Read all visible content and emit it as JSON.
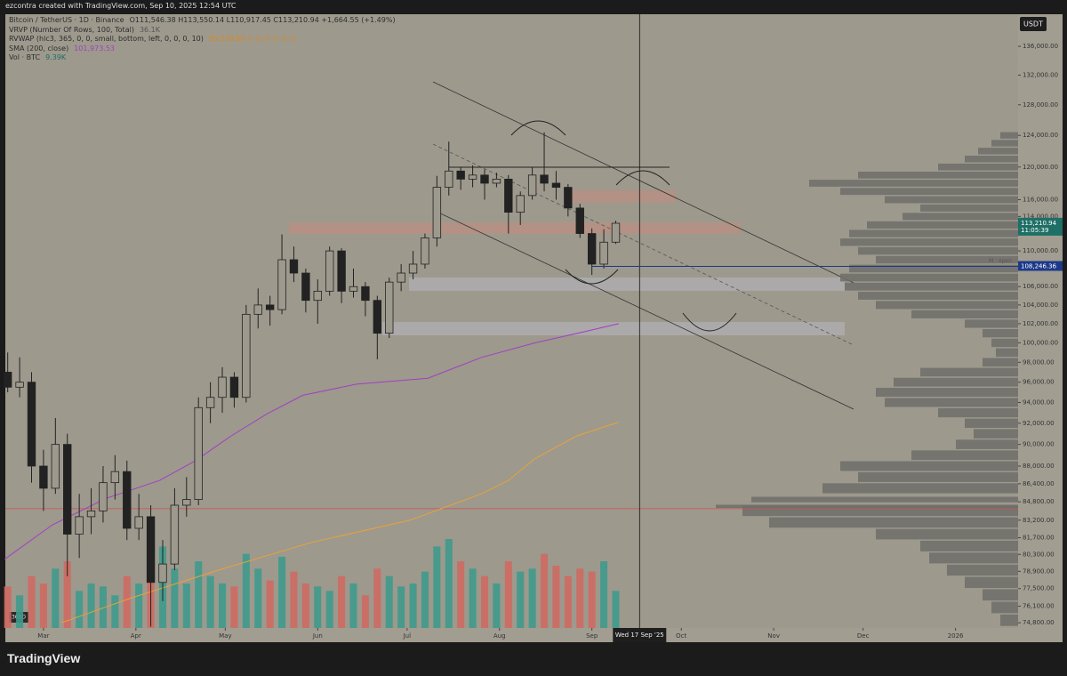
{
  "credit": "ezcontra created with TradingView.com, Sep 10, 2025 12:54 UTC",
  "footer_logo": "TradingView",
  "chart_data": {
    "type": "candlestick",
    "legend_lines": [
      {
        "name": "Bitcoin / TetherUS · 1D · Binance",
        "value": "O111,546.38 H113,550.14 L110,917.45 C113,210.94 +1,664.55 (+1.49%)"
      },
      {
        "name": "VRVP (Number Of Rows, 100, Total)",
        "value": "36.1K"
      },
      {
        "name": "RVWAP (hlc3, 365, 0, 0, small, bottom, left, 0, 0, 0, 10)",
        "value": "85,238.86 ∅ ∅ ∅ ∅ ∅ ∅"
      },
      {
        "name": "SMA (200, close)",
        "value": "101,973.53"
      },
      {
        "name": "Vol · BTC",
        "value": "9.39K"
      }
    ],
    "currency": "USDT",
    "range_label": "365D",
    "log_scale": true,
    "xlim": [
      -12.8,
      327
    ],
    "ylim": [
      74400,
      140600
    ],
    "xticks": [
      {
        "value": 0,
        "label": "Mar"
      },
      {
        "value": 31,
        "label": "Apr"
      },
      {
        "value": 61,
        "label": "May"
      },
      {
        "value": 92,
        "label": "Jun"
      },
      {
        "value": 122,
        "label": "Jul"
      },
      {
        "value": 153,
        "label": "Aug"
      },
      {
        "value": 184,
        "label": "Sep"
      },
      {
        "value": 214,
        "label": "Oct"
      },
      {
        "value": 245,
        "label": "Nov"
      },
      {
        "value": 275,
        "label": "Dec"
      },
      {
        "value": 306,
        "label": "2026"
      }
    ],
    "yticks": [
      {
        "value": 136000,
        "label": "136,000.00"
      },
      {
        "value": 132000,
        "label": "132,000.00"
      },
      {
        "value": 128000,
        "label": "128,000.00"
      },
      {
        "value": 124000,
        "label": "124,000.00"
      },
      {
        "value": 120000,
        "label": "120,000.00"
      },
      {
        "value": 116000,
        "label": "116,000.00"
      },
      {
        "value": 114000,
        "label": "114,000.00"
      },
      {
        "value": 110000,
        "label": "110,000.00"
      },
      {
        "value": 106000,
        "label": "106,000.00"
      },
      {
        "value": 104000,
        "label": "104,000.00"
      },
      {
        "value": 102000,
        "label": "102,000.00"
      },
      {
        "value": 100000,
        "label": "100,000.00"
      },
      {
        "value": 98000,
        "label": "98,000.00"
      },
      {
        "value": 96000,
        "label": "96,000.00"
      },
      {
        "value": 94000,
        "label": "94,000.00"
      },
      {
        "value": 92000,
        "label": "92,000.00"
      },
      {
        "value": 90000,
        "label": "90,000.00"
      },
      {
        "value": 88000,
        "label": "88,000.00"
      },
      {
        "value": 86400,
        "label": "86,400.00"
      },
      {
        "value": 84800,
        "label": "84,800.00"
      },
      {
        "value": 83200,
        "label": "83,200.00"
      },
      {
        "value": 81700,
        "label": "81,700.00"
      },
      {
        "value": 80300,
        "label": "80,300.00"
      },
      {
        "value": 78900,
        "label": "78,900.00"
      },
      {
        "value": 77500,
        "label": "77,500.00"
      },
      {
        "value": 76100,
        "label": "76,100.00"
      },
      {
        "value": 74800,
        "label": "74,800.00"
      }
    ],
    "candle_color": "#222222",
    "x": [
      -12,
      -8,
      -4,
      0,
      4,
      8,
      12,
      16,
      20,
      24,
      28,
      32,
      36,
      40,
      44,
      48,
      52,
      56,
      60,
      64,
      68,
      72,
      76,
      80,
      84,
      88,
      92,
      96,
      100,
      104,
      108,
      112,
      116,
      120,
      124,
      128,
      132,
      136,
      140,
      144,
      148,
      152,
      156,
      160,
      164,
      168,
      172,
      176,
      180,
      184,
      188,
      192
    ],
    "open": [
      97000,
      95500,
      96000,
      88000,
      86000,
      90000,
      82000,
      83500,
      84000,
      86500,
      87500,
      82500,
      83500,
      78000,
      79500,
      84500,
      85000,
      93500,
      94500,
      96500,
      94500,
      103000,
      104000,
      103500,
      109000,
      107500,
      104500,
      105500,
      110000,
      105500,
      106000,
      104500,
      101000,
      106500,
      107500,
      108500,
      111500,
      117500,
      119500,
      118500,
      119000,
      118000,
      118500,
      114500,
      116500,
      119000,
      118000,
      117500,
      115000,
      112000,
      108500,
      111000
    ],
    "high": [
      99000,
      98500,
      97000,
      89500,
      92500,
      91000,
      85500,
      86000,
      88000,
      89000,
      88500,
      85500,
      84500,
      81500,
      86000,
      87000,
      94500,
      96000,
      97500,
      97000,
      104000,
      105800,
      105000,
      111900,
      110500,
      108000,
      106800,
      110500,
      110300,
      108000,
      106500,
      105000,
      107000,
      108500,
      110000,
      112000,
      118900,
      123200,
      120000,
      120200,
      119700,
      119300,
      119000,
      117000,
      120000,
      124400,
      119500,
      117900,
      115500,
      112600,
      112500,
      113500
    ],
    "low": [
      95000,
      94500,
      86500,
      84000,
      85500,
      78500,
      80000,
      82000,
      83000,
      85000,
      81500,
      81500,
      74500,
      76500,
      79000,
      83500,
      84500,
      92000,
      93000,
      93500,
      94000,
      101500,
      101800,
      103000,
      106500,
      103200,
      102000,
      105000,
      104200,
      104800,
      102800,
      98300,
      100500,
      105500,
      106800,
      108000,
      110500,
      116500,
      117200,
      117500,
      116000,
      117500,
      112000,
      113000,
      116000,
      117000,
      116000,
      114000,
      111500,
      107300,
      108000,
      110800
    ],
    "close": [
      95500,
      96000,
      88000,
      86000,
      90000,
      82000,
      83500,
      84000,
      86500,
      87500,
      82500,
      83500,
      78000,
      79500,
      84500,
      85000,
      93500,
      94500,
      96500,
      94500,
      103000,
      104000,
      103500,
      109000,
      107500,
      104500,
      105500,
      110000,
      105500,
      106000,
      104500,
      101000,
      106500,
      107500,
      108500,
      111500,
      117500,
      119500,
      118500,
      119000,
      118000,
      118500,
      114500,
      116500,
      119000,
      118000,
      117500,
      115000,
      112000,
      108500,
      111000,
      113200
    ],
    "volume": {
      "colors": [
        "#3f9a8c",
        "#cf6a62"
      ],
      "vlim": [
        0,
        60
      ],
      "values": [
        28,
        22,
        35,
        30,
        40,
        45,
        25,
        30,
        28,
        22,
        35,
        30,
        42,
        55,
        40,
        30,
        45,
        35,
        30,
        28,
        50,
        40,
        32,
        48,
        38,
        30,
        28,
        25,
        35,
        30,
        22,
        40,
        35,
        28,
        30,
        38,
        55,
        60,
        45,
        40,
        35,
        30,
        45,
        38,
        40,
        50,
        42,
        35,
        40,
        38,
        45,
        25
      ]
    },
    "lines": [
      {
        "name": "SMA (200, close)",
        "color": "#a13fc2",
        "x": [
          -13,
          3,
          21,
          39,
          51,
          63,
          75,
          87,
          105,
          129,
          147,
          165,
          182,
          193
        ],
        "values": [
          79900,
          82800,
          85100,
          86700,
          88500,
          90800,
          92900,
          94700,
          95800,
          96400,
          98500,
          100000,
          101200,
          102000
        ]
      },
      {
        "name": "RVWAP",
        "color": "#e9a23a",
        "x": [
          6,
          30,
          60,
          90,
          123,
          147,
          156,
          165,
          179,
          193
        ],
        "values": [
          74800,
          76800,
          79100,
          81300,
          83200,
          85500,
          86700,
          88700,
          90800,
          92100
        ]
      }
    ],
    "volume_profile": {
      "color": "#6e6d6a",
      "xlim": [
        0,
        400
      ],
      "prices": [
        124000,
        123000,
        122000,
        121000,
        120000,
        119000,
        118000,
        117000,
        116000,
        115000,
        114000,
        113000,
        112000,
        111000,
        110000,
        109000,
        108000,
        107000,
        106000,
        105000,
        104000,
        103000,
        102000,
        101000,
        100000,
        99000,
        98000,
        97000,
        96000,
        95000,
        94000,
        93000,
        92000,
        91000,
        90000,
        89000,
        88000,
        87000,
        86000,
        85000,
        84400,
        84000,
        83000,
        82000,
        81000,
        80000,
        79000,
        78000,
        77000,
        76000,
        75000
      ],
      "values": [
        20,
        30,
        45,
        60,
        90,
        180,
        235,
        200,
        150,
        110,
        130,
        170,
        190,
        200,
        180,
        160,
        190,
        200,
        195,
        180,
        160,
        120,
        60,
        40,
        30,
        25,
        40,
        110,
        140,
        160,
        150,
        90,
        60,
        50,
        70,
        120,
        200,
        180,
        220,
        300,
        340,
        310,
        280,
        160,
        110,
        100,
        80,
        60,
        40,
        30,
        20
      ]
    },
    "price_tags": [
      {
        "value": 113210.94,
        "label": "113,210.94",
        "sub": "11:05:39",
        "color": "#1e6f66"
      },
      {
        "value": 108246.36,
        "label": "108,246.36",
        "color": "#1d3a8a"
      }
    ],
    "level_note": "M · open",
    "red_level": 84200,
    "crosshair": {
      "x": 200,
      "label": "Wed 17 Sep '25"
    }
  }
}
